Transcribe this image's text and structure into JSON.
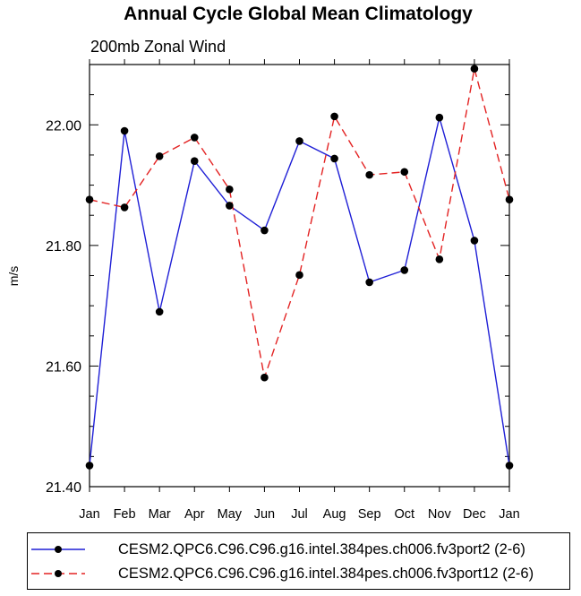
{
  "chart_data": {
    "type": "line",
    "title": "Annual Cycle Global Mean Climatology",
    "subtitle": "200mb Zonal Wind",
    "xlabel": "",
    "ylabel": "m/s",
    "categories": [
      "Jan",
      "Feb",
      "Mar",
      "Apr",
      "May",
      "Jun",
      "Jul",
      "Aug",
      "Sep",
      "Oct",
      "Nov",
      "Dec",
      "Jan"
    ],
    "ylim": [
      21.4,
      22.1
    ],
    "yticks": [
      "21.40",
      "21.60",
      "21.80",
      "22.00"
    ],
    "series": [
      {
        "name": "CESM2.QPC6.C96.C96.g16.intel.384pes.ch006.fv3port2 (2-6)",
        "color": "#1f1fd6",
        "dash": "solid",
        "values": [
          21.435,
          21.99,
          21.69,
          21.94,
          21.866,
          21.825,
          21.973,
          21.944,
          21.739,
          21.759,
          22.012,
          21.808,
          21.435
        ]
      },
      {
        "name": "CESM2.QPC6.C96.C96.g16.intel.384pes.ch006.fv3port12 (2-6)",
        "color": "#e32222",
        "dash": "dashed",
        "values": [
          21.876,
          21.863,
          21.948,
          21.979,
          21.893,
          21.581,
          21.751,
          22.014,
          21.917,
          21.922,
          21.777,
          22.093,
          21.876
        ]
      }
    ],
    "legend_position": "bottom"
  }
}
